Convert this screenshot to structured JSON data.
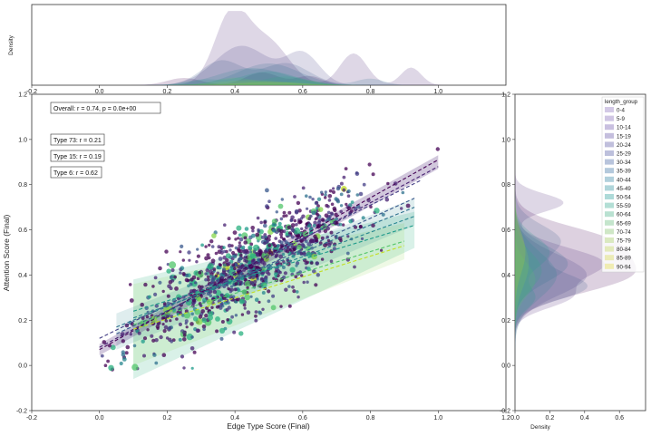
{
  "chart_data": {
    "type": "scatter",
    "xlabel": "Edge Type Score (Final)",
    "ylabel": "Attention Score (Final)",
    "xlim": [
      -0.2,
      1.2
    ],
    "ylim": [
      -0.2,
      1.2
    ],
    "x_ticks": [
      "-0.2",
      "0.0",
      "0.2",
      "0.4",
      "0.6",
      "0.8",
      "1.0",
      "1.2"
    ],
    "y_ticks": [
      "-0.2",
      "0.0",
      "0.2",
      "0.4",
      "0.6",
      "0.8",
      "1.0",
      "1.2"
    ],
    "top_marginal": {
      "ylabel": "Density",
      "x_ticks": [
        "-0.2",
        "0.0",
        "0.2",
        "0.4",
        "0.6",
        "0.8",
        "1.0"
      ]
    },
    "right_marginal": {
      "xlabel": "Density",
      "x_ticks": [
        "0.0",
        "0.2",
        "0.4",
        "0.6"
      ],
      "xlim": [
        0,
        0.75
      ]
    },
    "annotations": [
      "Overall: r = 0.74, p = 0.0e+00",
      "Type 73: r = 0.21",
      "Type 15: r = 0.19",
      "Type 6: r = 0.62"
    ],
    "legend": {
      "title": "length_group",
      "placement": "top-right",
      "entries": [
        "0-4",
        "5-9",
        "10-14",
        "15-19",
        "20-24",
        "25-29",
        "30-34",
        "35-39",
        "40-44",
        "45-49",
        "50-54",
        "55-59",
        "60-64",
        "65-69",
        "70-74",
        "75-79",
        "80-84",
        "85-89",
        "90-94"
      ]
    },
    "colors": [
      "#d3c9e6",
      "#cfc5e3",
      "#c9c0e0",
      "#c4bedd",
      "#c0bfdc",
      "#bdc0dc",
      "#b8c4dc",
      "#b4c9dc",
      "#b1d0dc",
      "#afd5da",
      "#aedad8",
      "#b3ded5",
      "#b9e1d1",
      "#c4e5cc",
      "#cfe7c6",
      "#dae9c0",
      "#e3eabb",
      "#ebebb6",
      "#f0ecb3"
    ],
    "series": [
      {
        "name": "0-4",
        "color": "#440154"
      },
      {
        "name": "5-9",
        "color": "#482173"
      },
      {
        "name": "10-14",
        "color": "#433e85"
      },
      {
        "name": "15-19",
        "color": "#38588c"
      },
      {
        "name": "20-24",
        "color": "#2d708e"
      },
      {
        "name": "25-29",
        "color": "#25858e"
      },
      {
        "name": "30-34",
        "color": "#1e9b8a"
      },
      {
        "name": "35-39",
        "color": "#2ab07f"
      },
      {
        "name": "40-44",
        "color": "#52c569"
      },
      {
        "name": "45-49",
        "color": "#86d549"
      },
      {
        "name": "50-54",
        "color": "#c2df23"
      }
    ],
    "regression_lines": [
      {
        "x": [
          0.0,
          1.0
        ],
        "y": [
          0.07,
          0.91
        ],
        "color": "#440154"
      },
      {
        "x": [
          0.0,
          1.0
        ],
        "y": [
          0.08,
          0.88
        ],
        "color": "#482173"
      },
      {
        "x": [
          0.0,
          0.95
        ],
        "y": [
          0.12,
          0.82
        ],
        "color": "#433e85"
      },
      {
        "x": [
          0.05,
          0.93
        ],
        "y": [
          0.14,
          0.74
        ],
        "color": "#38588c"
      },
      {
        "x": [
          0.05,
          0.93
        ],
        "y": [
          0.17,
          0.7
        ],
        "color": "#2d708e"
      },
      {
        "x": [
          0.1,
          0.93
        ],
        "y": [
          0.21,
          0.66
        ],
        "color": "#25858e"
      },
      {
        "x": [
          0.1,
          0.93
        ],
        "y": [
          0.24,
          0.62
        ],
        "color": "#1e9b8a"
      },
      {
        "x": [
          0.1,
          0.9
        ],
        "y": [
          0.18,
          0.55
        ],
        "color": "#52c569"
      },
      {
        "x": [
          0.1,
          0.9
        ],
        "y": [
          0.16,
          0.53
        ],
        "color": "#c2df23"
      }
    ]
  }
}
